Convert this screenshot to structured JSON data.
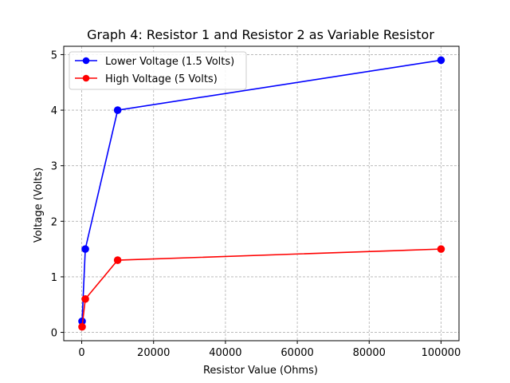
{
  "chart_data": {
    "type": "line",
    "title": "Graph 4: Resistor 1 and Resistor 2 as Variable Resistor",
    "xlabel": "Resistor Value (Ohms)",
    "ylabel": "Voltage (Volts)",
    "xlim": [
      -5000,
      105000
    ],
    "ylim": [
      -0.15,
      5.15
    ],
    "xticks": [
      0,
      20000,
      40000,
      60000,
      80000,
      100000
    ],
    "xtick_labels": [
      "0",
      "20000",
      "40000",
      "60000",
      "80000",
      "100000"
    ],
    "yticks": [
      0,
      1,
      2,
      3,
      4,
      5
    ],
    "ytick_labels": [
      "0",
      "1",
      "2",
      "3",
      "4",
      "5"
    ],
    "grid": true,
    "legend_position": "top-left",
    "series": [
      {
        "name": "Lower Voltage (1.5 Volts)",
        "color": "#0000ff",
        "x": [
          100,
          1000,
          10000,
          100000
        ],
        "y": [
          0.2,
          1.5,
          4.0,
          4.9
        ]
      },
      {
        "name": "High Voltage (5 Volts)",
        "color": "#ff0000",
        "x": [
          100,
          1000,
          10000,
          100000
        ],
        "y": [
          0.1,
          0.6,
          1.3,
          1.5
        ]
      }
    ]
  }
}
